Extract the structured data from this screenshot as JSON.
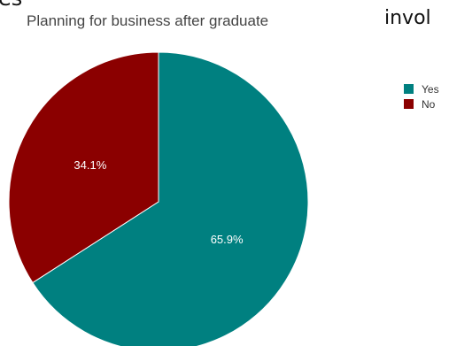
{
  "page": {
    "fragment_left": "es",
    "fragment_right": "invol"
  },
  "chart_data": {
    "type": "pie",
    "title": "Planning for business after graduate",
    "slices": [
      {
        "name": "Yes",
        "value": 65.9,
        "label": "65.9%",
        "color": "#008080"
      },
      {
        "name": "No",
        "value": 34.1,
        "label": "34.1%",
        "color": "#8b0000"
      }
    ],
    "legend_position": "right"
  }
}
